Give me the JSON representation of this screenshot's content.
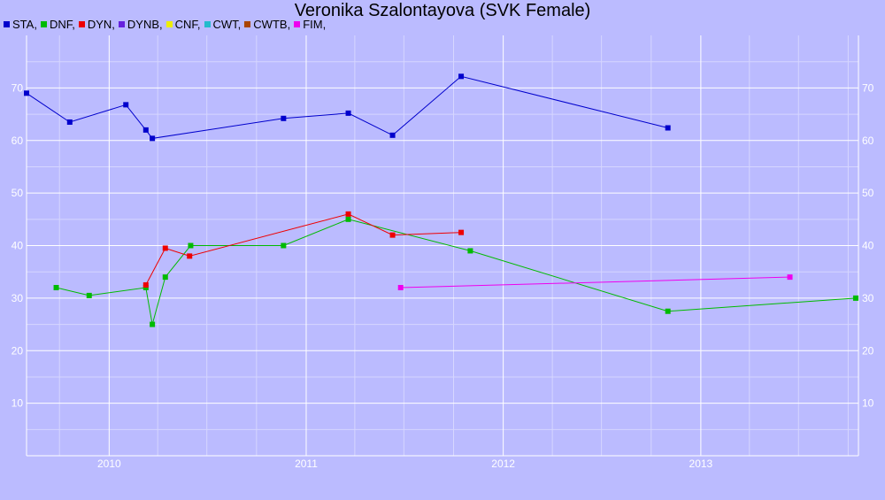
{
  "chart_data": {
    "type": "line",
    "title": "Veronika Szalontayova (SVK Female)",
    "legend": [
      {
        "name": "STA,",
        "color": "#0000cc"
      },
      {
        "name": "DNF,",
        "color": "#00bb00"
      },
      {
        "name": "DYN,",
        "color": "#ee0000"
      },
      {
        "name": "DYNB,",
        "color": "#6622dd"
      },
      {
        "name": "CNF,",
        "color": "#eeee00"
      },
      {
        "name": "CWT,",
        "color": "#22bbcc"
      },
      {
        "name": "CWTB,",
        "color": "#aa4400"
      },
      {
        "name": "FIM,",
        "color": "#ee00ee"
      }
    ],
    "xlim": [
      "2009-08-01",
      "2013-10-20"
    ],
    "ylim": [
      0,
      80
    ],
    "x_ticks": [
      "2010",
      "2011",
      "2012",
      "2013"
    ],
    "y_ticks": [
      10,
      20,
      30,
      40,
      50,
      60,
      70
    ],
    "grid": true,
    "legend_position": "top-left",
    "series": [
      {
        "name": "STA,",
        "color": "#0000cc",
        "points": [
          [
            "2009-08-01",
            69.0
          ],
          [
            "2009-10-20",
            63.5
          ],
          [
            "2010-02-01",
            66.8
          ],
          [
            "2010-03-10",
            62.0
          ],
          [
            "2010-03-22",
            60.4
          ],
          [
            "2010-11-20",
            64.2
          ],
          [
            "2011-03-20",
            65.2
          ],
          [
            "2011-06-10",
            61.0
          ],
          [
            "2011-10-15",
            72.2
          ],
          [
            "2012-11-01",
            62.4
          ]
        ]
      },
      {
        "name": "DNF,",
        "color": "#00bb00",
        "points": [
          [
            "2009-09-25",
            32.0
          ],
          [
            "2009-11-25",
            30.5
          ],
          [
            "2010-03-10",
            32.0
          ],
          [
            "2010-03-22",
            25.0
          ],
          [
            "2010-04-15",
            34.0
          ],
          [
            "2010-06-01",
            40.0
          ],
          [
            "2010-11-20",
            40.0
          ],
          [
            "2011-03-20",
            45.0
          ],
          [
            "2011-11-01",
            39.0
          ],
          [
            "2012-11-01",
            27.5
          ],
          [
            "2013-10-15",
            30.0
          ]
        ]
      },
      {
        "name": "DYN,",
        "color": "#ee0000",
        "points": [
          [
            "2010-03-10",
            32.5
          ],
          [
            "2010-04-15",
            39.5
          ],
          [
            "2010-05-30",
            38.0
          ],
          [
            "2011-03-20",
            46.0
          ],
          [
            "2011-06-10",
            42.0
          ],
          [
            "2011-10-15",
            42.5
          ]
        ]
      },
      {
        "name": "FIM,",
        "color": "#ee00ee",
        "points": [
          [
            "2011-06-25",
            32.0
          ],
          [
            "2013-06-15",
            34.0
          ]
        ]
      }
    ]
  }
}
